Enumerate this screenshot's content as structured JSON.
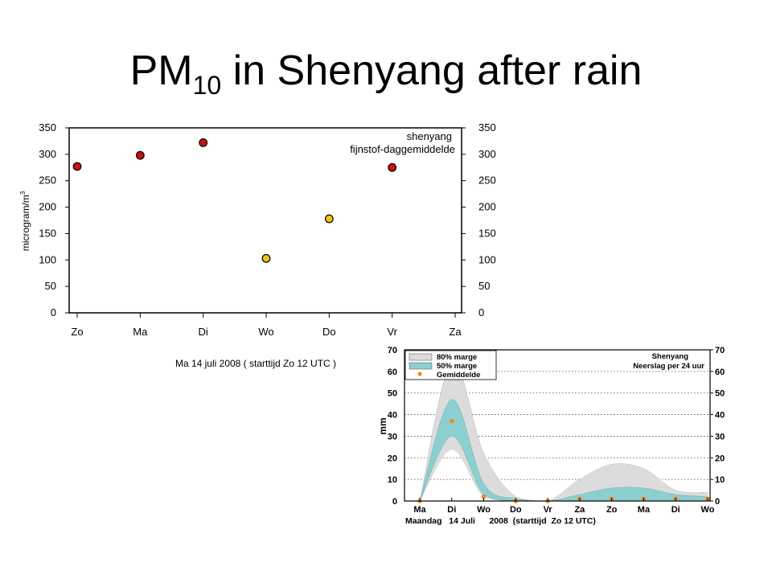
{
  "slide": {
    "title_main": "PM",
    "title_sub": "10",
    "title_rest": " in Shenyang after rain"
  },
  "chart_data": [
    {
      "type": "scatter",
      "annotation_line1": "shenyang",
      "annotation_line2": "fijnstof-daggemiddelde",
      "ylabel": "microgram/m",
      "ylabel_sup": "3",
      "caption": "Ma 14 juli 2008 ( starttijd Zo 12 UTC )",
      "categories": [
        "Zo",
        "Ma",
        "Di",
        "Wo",
        "Do",
        "Vr",
        "Za"
      ],
      "yticks": [
        "350",
        "300",
        "250",
        "200",
        "150",
        "100",
        "50",
        "0"
      ],
      "ylim": [
        0,
        350
      ],
      "points": [
        {
          "x": "Zo",
          "y": 277,
          "color": "#cc1111"
        },
        {
          "x": "Ma",
          "y": 298,
          "color": "#cc1111"
        },
        {
          "x": "Di",
          "y": 322,
          "color": "#cc1111"
        },
        {
          "x": "Wo",
          "y": 103,
          "color": "#f2c218"
        },
        {
          "x": "Do",
          "y": 178,
          "color": "#f2c218"
        },
        {
          "x": "Vr",
          "y": 275,
          "color": "#cc1111"
        }
      ]
    },
    {
      "type": "area",
      "title_line1": "Shenyang",
      "title_line2": "Neerslag per 24 uur",
      "ylabel": "mm",
      "caption": "Maandag   14 Juli      2008  (starttijd  Zo 12 UTC)",
      "categories": [
        "Ma",
        "Di",
        "Wo",
        "Do",
        "Vr",
        "Za",
        "Zo",
        "Ma",
        "Di",
        "Wo"
      ],
      "yticks": [
        "70",
        "60",
        "50",
        "40",
        "30",
        "20",
        "10",
        "0"
      ],
      "ylim": [
        0,
        70
      ],
      "legend": [
        {
          "label": "80% marge",
          "color": "#dcdcdc"
        },
        {
          "label": "50% marge",
          "color": "#8ccfcf"
        },
        {
          "label": "Gemiddelde",
          "color": "#f08a1c"
        }
      ],
      "colors": {
        "band80": "#dcdcdc",
        "band50": "#8ccfcf",
        "mean": "#f08a1c"
      },
      "band80_upper": [
        0,
        64,
        22,
        2,
        0,
        10,
        17,
        15,
        5,
        4
      ],
      "band80_lower": [
        0,
        24,
        2,
        0,
        0,
        0,
        0,
        0,
        0,
        0
      ],
      "band50_upper": [
        0,
        47,
        8,
        1,
        0,
        3,
        6,
        6,
        3,
        2
      ],
      "band50_lower": [
        0,
        30,
        3,
        0,
        0,
        0,
        0,
        0,
        0,
        0
      ],
      "mean": [
        0,
        37,
        2,
        0,
        0,
        1,
        1,
        1,
        1,
        1
      ]
    }
  ]
}
